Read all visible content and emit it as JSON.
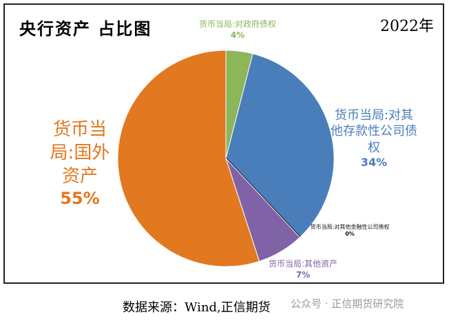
{
  "chart_data": {
    "type": "pie",
    "title": "央行资产 占比图",
    "annotation": "2022年",
    "categories": [
      "货币当局:对政府债权",
      "货币当局:对其他存款性公司债权",
      "货币当局:对其他金融性公司债权",
      "货币当局:其他资产",
      "货币当局:国外资产"
    ],
    "values": [
      4,
      34,
      0,
      7,
      55
    ],
    "value_labels": [
      "4%",
      "34%",
      "0%",
      "7%",
      "55%"
    ],
    "colors": [
      "#8db55a",
      "#4a7ebb",
      "#111111",
      "#7f63a6",
      "#e2781f"
    ]
  },
  "footer": {
    "source": "数据来源：Wind,正信期货",
    "watermark": "公众号 · 正信期货研究院"
  }
}
